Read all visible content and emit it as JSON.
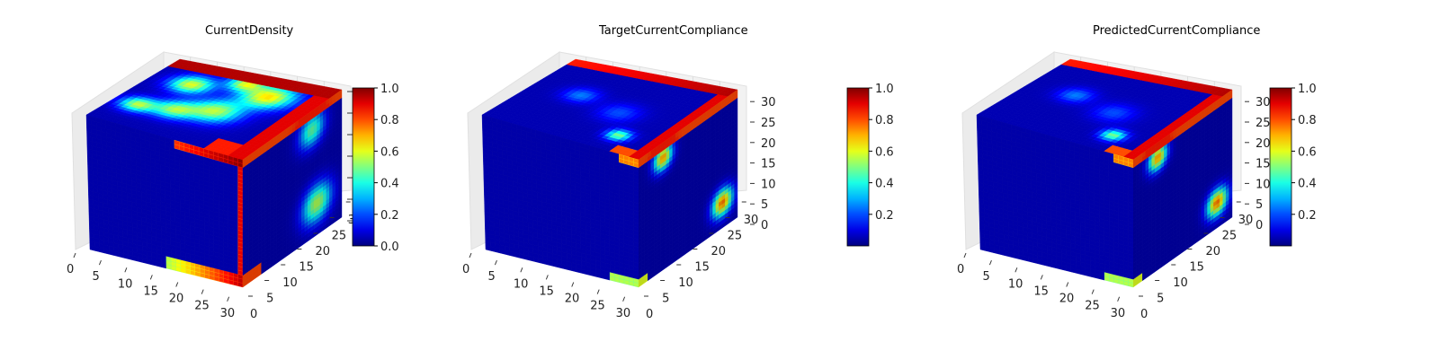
{
  "chart_data": [
    {
      "type": "heatmap",
      "title": "CurrentDensity",
      "x_ticks": [
        "0",
        "5",
        "10",
        "15",
        "20",
        "25",
        "30"
      ],
      "y_ticks": [
        "0",
        "5",
        "10",
        "15",
        "20",
        "25",
        "30"
      ],
      "z_ticks": [],
      "colorbar": {
        "min": 0.0,
        "max": 1.0,
        "ticks": [
          "0.0",
          "0.2",
          "0.4",
          "0.6",
          "0.8",
          "1.0"
        ]
      },
      "colormap": "jet",
      "grid_shape": [
        32,
        32,
        32
      ],
      "range": [
        0,
        1
      ]
    },
    {
      "type": "heatmap",
      "title": "TargetCurrentCompliance",
      "x_ticks": [
        "0",
        "5",
        "10",
        "15",
        "20",
        "25",
        "30"
      ],
      "y_ticks": [
        "0",
        "5",
        "10",
        "15",
        "20",
        "25",
        "30"
      ],
      "z_ticks": [
        "0",
        "5",
        "10",
        "15",
        "20",
        "25",
        "30"
      ],
      "colorbar": {
        "min": 0.0,
        "max": 1.0,
        "ticks": [
          "0.2",
          "0.4",
          "0.6",
          "0.8",
          "1.0"
        ]
      },
      "colormap": "jet",
      "grid_shape": [
        32,
        32,
        32
      ],
      "range": [
        0,
        1
      ]
    },
    {
      "type": "heatmap",
      "title": "PredictedCurrentCompliance",
      "x_ticks": [
        "0",
        "5",
        "10",
        "15",
        "20",
        "25",
        "30"
      ],
      "y_ticks": [
        "0",
        "5",
        "10",
        "15",
        "20",
        "25",
        "30"
      ],
      "z_ticks": [
        "0",
        "5",
        "10",
        "15",
        "20",
        "25",
        "30"
      ],
      "colorbar": {
        "min": 0.0,
        "max": 1.0,
        "ticks": [
          "0.2",
          "0.4",
          "0.6",
          "0.8",
          "1.0"
        ]
      },
      "colormap": "jet",
      "grid_shape": [
        32,
        32,
        32
      ],
      "range": [
        0,
        1
      ]
    }
  ]
}
